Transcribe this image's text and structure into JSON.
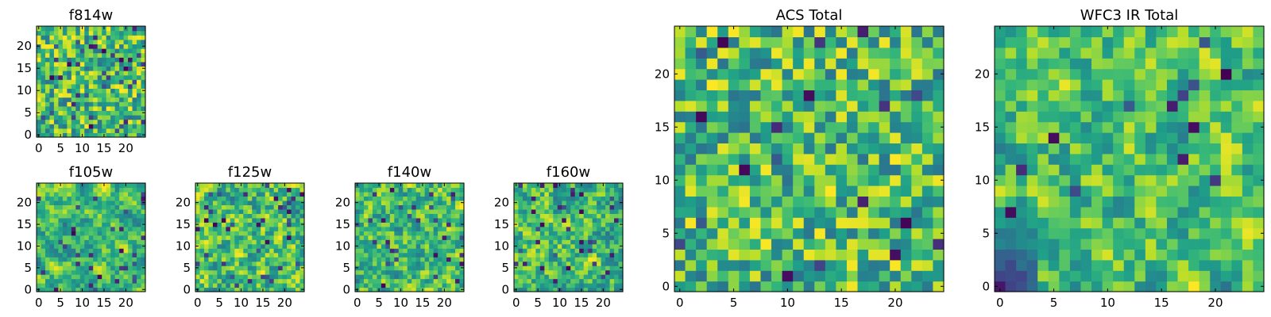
{
  "chart_data": [
    {
      "type": "heatmap",
      "title": "f814w",
      "rows": 25,
      "cols": 25,
      "seed": 11,
      "smooth": 0,
      "dark_frac": 0.06,
      "xticks": [
        0,
        5,
        10,
        15,
        20
      ],
      "yticks": [
        0,
        5,
        10,
        15,
        20
      ],
      "xlim": [
        -0.5,
        24.5
      ],
      "ylim": [
        -0.5,
        24.5
      ]
    },
    {
      "type": "heatmap",
      "title": "f105w",
      "rows": 25,
      "cols": 25,
      "seed": 23,
      "smooth": 2,
      "dark_frac": 0.05,
      "xticks": [
        0,
        5,
        10,
        15,
        20
      ],
      "yticks": [
        0,
        5,
        10,
        15,
        20
      ],
      "xlim": [
        -0.5,
        24.5
      ],
      "ylim": [
        -0.5,
        24.5
      ]
    },
    {
      "type": "heatmap",
      "title": "f125w",
      "rows": 25,
      "cols": 25,
      "seed": 37,
      "smooth": 1,
      "dark_frac": 0.06,
      "xticks": [
        0,
        5,
        10,
        15,
        20
      ],
      "yticks": [
        0,
        5,
        10,
        15,
        20
      ],
      "xlim": [
        -0.5,
        24.5
      ],
      "ylim": [
        -0.5,
        24.5
      ]
    },
    {
      "type": "heatmap",
      "title": "f140w",
      "rows": 25,
      "cols": 25,
      "seed": 41,
      "smooth": 1,
      "dark_frac": 0.05,
      "xticks": [
        0,
        5,
        10,
        15,
        20
      ],
      "yticks": [
        0,
        5,
        10,
        15,
        20
      ],
      "xlim": [
        -0.5,
        24.5
      ],
      "ylim": [
        -0.5,
        24.5
      ]
    },
    {
      "type": "heatmap",
      "title": "f160w",
      "rows": 25,
      "cols": 25,
      "seed": 53,
      "smooth": 1,
      "dark_frac": 0.06,
      "xticks": [
        0,
        5,
        10,
        15,
        20
      ],
      "yticks": [
        0,
        5,
        10,
        15,
        20
      ],
      "xlim": [
        -0.5,
        24.5
      ],
      "ylim": [
        -0.5,
        24.5
      ]
    },
    {
      "type": "heatmap",
      "title": "ACS Total",
      "rows": 25,
      "cols": 25,
      "seed": 67,
      "smooth": 0,
      "dark_frac": 0.03,
      "xticks": [
        0,
        5,
        10,
        15,
        20
      ],
      "yticks": [
        0,
        5,
        10,
        15,
        20
      ],
      "xlim": [
        -0.5,
        24.5
      ],
      "ylim": [
        -0.5,
        24.5
      ]
    },
    {
      "type": "heatmap",
      "title": "WFC3 IR Total",
      "rows": 25,
      "cols": 25,
      "seed": 79,
      "smooth": 1,
      "dark_frac": 0.02,
      "dark_corner": "bottom-left",
      "xticks": [
        0,
        5,
        10,
        15,
        20
      ],
      "yticks": [
        0,
        5,
        10,
        15,
        20
      ],
      "xlim": [
        -0.5,
        24.5
      ],
      "ylim": [
        -0.5,
        24.5
      ]
    }
  ],
  "colormap": "viridis",
  "colors": {
    "axis": "#000000",
    "background": "#ffffff"
  }
}
